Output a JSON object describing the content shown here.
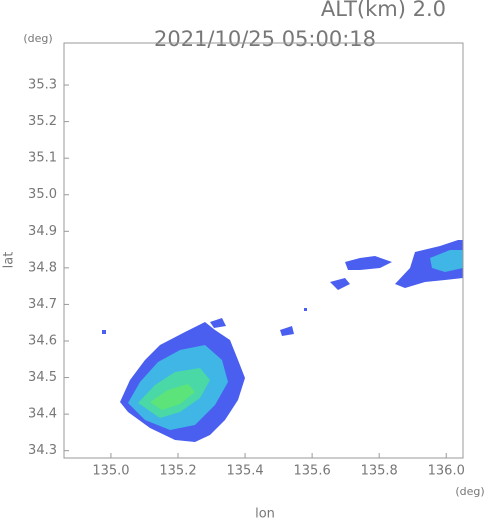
{
  "chart_data": {
    "type": "map",
    "title": "2021/10/25 05:00:18",
    "altitude_label": "ALT(km) 2.0",
    "y_unit": "(deg)",
    "x_unit": "(deg)",
    "xlabel": "lon",
    "ylabel": "lat",
    "xlim": [
      134.86,
      136.05
    ],
    "ylim": [
      34.28,
      35.415
    ],
    "xticks": [
      {
        "value": 135,
        "label": "135.0"
      },
      135.2,
      135.4,
      135.6,
      135.8,
      {
        "value": 136,
        "label": "136.0"
      }
    ],
    "yticks": [
      34.3,
      34.4,
      34.5,
      34.6,
      34.7,
      34.8,
      34.9,
      {
        "value": 35,
        "label": "35.0"
      },
      35.1,
      35.2,
      35.3
    ]
  }
}
